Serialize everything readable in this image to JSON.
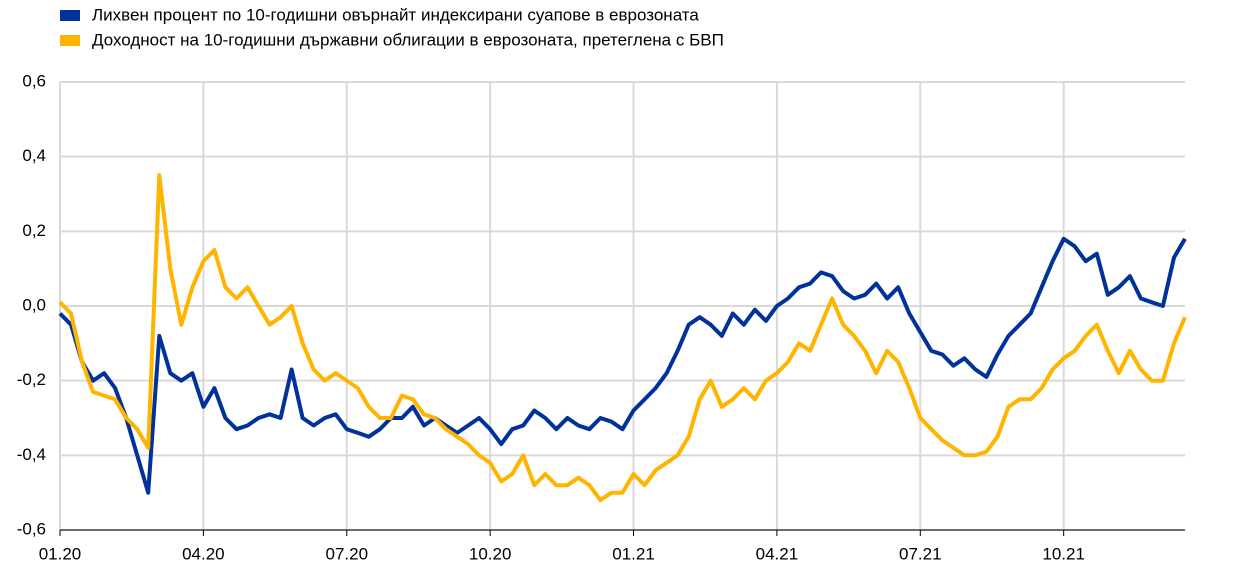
{
  "chart_data": {
    "type": "line",
    "categories": [
      "01.20",
      null,
      null,
      null,
      null,
      null,
      null,
      null,
      null,
      null,
      null,
      null,
      null,
      "04.20",
      null,
      null,
      null,
      null,
      null,
      null,
      null,
      null,
      null,
      null,
      null,
      null,
      "07.20",
      null,
      null,
      null,
      null,
      null,
      null,
      null,
      null,
      null,
      null,
      null,
      null,
      "10.20",
      null,
      null,
      null,
      null,
      null,
      null,
      null,
      null,
      null,
      null,
      null,
      null,
      "01.21",
      null,
      null,
      null,
      null,
      null,
      null,
      null,
      null,
      null,
      null,
      null,
      null,
      "04.21",
      null,
      null,
      null,
      null,
      null,
      null,
      null,
      null,
      null,
      null,
      null,
      null,
      "07.21",
      null,
      null,
      null,
      null,
      null,
      null,
      null,
      null,
      null,
      null,
      null,
      null,
      "10.21",
      null,
      null,
      null,
      null,
      null,
      null,
      null,
      null,
      null,
      null,
      null
    ],
    "series": [
      {
        "name": "Лихвен процент по 10-годишни овърнайт индексирани суапове в еврозоната",
        "color": "#003299",
        "values": [
          -0.02,
          -0.05,
          -0.15,
          -0.2,
          -0.18,
          -0.22,
          -0.3,
          -0.4,
          -0.5,
          -0.08,
          -0.18,
          -0.2,
          -0.18,
          -0.27,
          -0.22,
          -0.3,
          -0.33,
          -0.32,
          -0.3,
          -0.29,
          -0.3,
          -0.17,
          -0.3,
          -0.32,
          -0.3,
          -0.29,
          -0.33,
          -0.34,
          -0.35,
          -0.33,
          -0.3,
          -0.3,
          -0.27,
          -0.32,
          -0.3,
          -0.32,
          -0.34,
          -0.32,
          -0.3,
          -0.33,
          -0.37,
          -0.33,
          -0.32,
          -0.28,
          -0.3,
          -0.33,
          -0.3,
          -0.32,
          -0.33,
          -0.3,
          -0.31,
          -0.33,
          -0.28,
          -0.25,
          -0.22,
          -0.18,
          -0.12,
          -0.05,
          -0.03,
          -0.05,
          -0.08,
          -0.02,
          -0.05,
          -0.01,
          -0.04,
          0.0,
          0.02,
          0.05,
          0.06,
          0.09,
          0.08,
          0.04,
          0.02,
          0.03,
          0.06,
          0.02,
          0.05,
          -0.02,
          -0.07,
          -0.12,
          -0.13,
          -0.16,
          -0.14,
          -0.17,
          -0.19,
          -0.13,
          -0.08,
          -0.05,
          -0.02,
          0.05,
          0.12,
          0.18,
          0.16,
          0.12,
          0.14,
          0.03,
          0.05,
          0.08,
          0.02,
          0.01,
          0.0,
          0.13,
          0.18
        ]
      },
      {
        "name": "Доходност на 10-годишни държавни облигации в еврозоната, претеглена с БВП",
        "color": "#ffb400",
        "values": [
          0.01,
          -0.02,
          -0.15,
          -0.23,
          -0.24,
          -0.25,
          -0.3,
          -0.33,
          -0.38,
          0.35,
          0.1,
          -0.05,
          0.05,
          0.12,
          0.15,
          0.05,
          0.02,
          0.05,
          0.0,
          -0.05,
          -0.03,
          0.0,
          -0.1,
          -0.17,
          -0.2,
          -0.18,
          -0.2,
          -0.22,
          -0.27,
          -0.3,
          -0.3,
          -0.24,
          -0.25,
          -0.29,
          -0.3,
          -0.33,
          -0.35,
          -0.37,
          -0.4,
          -0.42,
          -0.47,
          -0.45,
          -0.4,
          -0.48,
          -0.45,
          -0.48,
          -0.48,
          -0.46,
          -0.48,
          -0.52,
          -0.5,
          -0.5,
          -0.45,
          -0.48,
          -0.44,
          -0.42,
          -0.4,
          -0.35,
          -0.25,
          -0.2,
          -0.27,
          -0.25,
          -0.22,
          -0.25,
          -0.2,
          -0.18,
          -0.15,
          -0.1,
          -0.12,
          -0.05,
          0.02,
          -0.05,
          -0.08,
          -0.12,
          -0.18,
          -0.12,
          -0.15,
          -0.22,
          -0.3,
          -0.33,
          -0.36,
          -0.38,
          -0.4,
          -0.4,
          -0.39,
          -0.35,
          -0.27,
          -0.25,
          -0.25,
          -0.22,
          -0.17,
          -0.14,
          -0.12,
          -0.08,
          -0.05,
          -0.12,
          -0.18,
          -0.12,
          -0.17,
          -0.2,
          -0.2,
          -0.1,
          -0.03
        ]
      }
    ],
    "ylim": [
      -0.6,
      0.6
    ],
    "yticks": [
      {
        "value": -0.6,
        "label": "-0,6"
      },
      {
        "value": -0.4,
        "label": "-0,4"
      },
      {
        "value": -0.2,
        "label": "-0,2"
      },
      {
        "value": 0,
        "label": "0,0"
      },
      {
        "value": 0.2,
        "label": "0,2"
      },
      {
        "value": 0.4,
        "label": "0,4"
      },
      {
        "value": 0.6,
        "label": "0,6"
      }
    ],
    "grid": true
  }
}
